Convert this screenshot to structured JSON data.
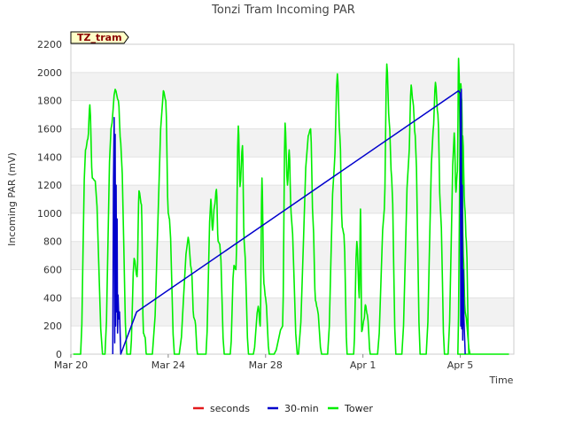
{
  "chart_data": {
    "type": "line",
    "title": "Tonzi Tram Incoming PAR",
    "xlabel": "Time",
    "ylabel": "Incoming PAR (mV)",
    "badge": "TZ_tram",
    "x_origin": "2024-03-20",
    "xlim": [
      0,
      18.2
    ],
    "ylim": [
      0,
      2200
    ],
    "yticks": [
      0,
      200,
      400,
      600,
      800,
      1000,
      1200,
      1400,
      1600,
      1800,
      2000,
      2200
    ],
    "xticks": [
      {
        "value": 0,
        "label": "Mar 20"
      },
      {
        "value": 4,
        "label": "Mar 24"
      },
      {
        "value": 8,
        "label": "Mar 28"
      },
      {
        "value": 12,
        "label": "Apr 1"
      },
      {
        "value": 16,
        "label": "Apr 5"
      }
    ],
    "grid": true,
    "legend_position": "bottom",
    "series": [
      {
        "name": "seconds",
        "color": "#e31a1c",
        "points": []
      },
      {
        "name": "30-min",
        "color": "#0000cc",
        "points": [
          [
            1.72,
            0
          ],
          [
            1.75,
            1250
          ],
          [
            1.78,
            1680
          ],
          [
            1.8,
            80
          ],
          [
            1.82,
            1560
          ],
          [
            1.84,
            200
          ],
          [
            1.86,
            1200
          ],
          [
            1.88,
            300
          ],
          [
            1.9,
            960
          ],
          [
            1.92,
            150
          ],
          [
            1.94,
            420
          ],
          [
            1.97,
            250
          ],
          [
            2.0,
            300
          ],
          [
            2.05,
            0
          ],
          [
            2.7,
            300
          ],
          [
            15.93,
            1870
          ],
          [
            16.0,
            1850
          ],
          [
            16.02,
            200
          ],
          [
            16.04,
            1880
          ],
          [
            16.06,
            180
          ],
          [
            16.08,
            1200
          ],
          [
            16.1,
            100
          ],
          [
            16.12,
            600
          ],
          [
            16.15,
            250
          ],
          [
            16.2,
            0
          ]
        ]
      },
      {
        "name": "Tower",
        "color": "#00ee00",
        "days": [
          {
            "s": 0.4,
            "p": 0.78,
            "e": 1.3,
            "peak": 1770,
            "sub": [
              [
                0.6,
                1450
              ],
              [
                0.7,
                1530
              ],
              [
                0.88,
                1250
              ],
              [
                1.0,
                1230
              ]
            ]
          },
          {
            "s": 1.4,
            "p": 1.82,
            "e": 2.3,
            "peak": 1880,
            "sub": [
              [
                1.65,
                1600
              ],
              [
                1.95,
                1800
              ],
              [
                2.05,
                1500
              ]
            ]
          },
          {
            "s": 2.45,
            "p": 2.8,
            "e": 3.1,
            "peak": 1160,
            "sub": [
              [
                2.6,
                680
              ],
              [
                2.72,
                550
              ],
              [
                2.9,
                1060
              ],
              [
                2.98,
                150
              ],
              [
                3.05,
                120
              ]
            ]
          },
          {
            "s": 3.35,
            "p": 3.8,
            "e": 4.25,
            "peak": 1870,
            "sub": [
              [
                3.9,
                1800
              ],
              [
                4.0,
                1000
              ],
              [
                4.05,
                960
              ]
            ]
          },
          {
            "s": 4.45,
            "p": 4.82,
            "e": 5.2,
            "peak": 830,
            "sub": [
              [
                4.95,
                600
              ],
              [
                5.05,
                260
              ],
              [
                5.1,
                240
              ]
            ]
          },
          {
            "s": 5.55,
            "p": 5.98,
            "e": 6.3,
            "peak": 1170,
            "sub": [
              [
                5.75,
                1100
              ],
              [
                5.82,
                880
              ],
              [
                5.9,
                1050
              ],
              [
                6.05,
                800
              ],
              [
                6.12,
                780
              ]
            ]
          },
          {
            "s": 6.55,
            "p": 6.88,
            "e": 7.3,
            "peak": 1620,
            "sub": [
              [
                6.7,
                630
              ],
              [
                6.78,
                600
              ],
              [
                6.95,
                1190
              ],
              [
                7.05,
                1480
              ],
              [
                7.12,
                800
              ]
            ]
          },
          {
            "s": 7.5,
            "p": 7.85,
            "e": 8.15,
            "peak": 1250,
            "sub": [
              [
                7.7,
                340
              ],
              [
                7.78,
                200
              ],
              [
                7.93,
                500
              ],
              [
                8.0,
                400
              ]
            ]
          },
          {
            "s": 8.35,
            "p": 8.8,
            "e": 9.3,
            "peak": 1640,
            "sub": [
              [
                8.7,
                200
              ],
              [
                8.9,
                1200
              ],
              [
                8.97,
                1450
              ],
              [
                9.05,
                1000
              ]
            ]
          },
          {
            "s": 9.35,
            "p": 9.85,
            "e": 10.3,
            "peak": 1600,
            "sub": [
              [
                9.75,
                1550
              ],
              [
                9.95,
                940
              ],
              [
                10.05,
                380
              ],
              [
                10.12,
                330
              ]
            ]
          },
          {
            "s": 10.55,
            "p": 10.95,
            "e": 11.35,
            "peak": 1990,
            "sub": [
              [
                10.82,
                1330
              ],
              [
                11.05,
                1550
              ],
              [
                11.15,
                900
              ],
              [
                11.22,
                850
              ]
            ]
          },
          {
            "s": 11.62,
            "p": 11.9,
            "e": 12.3,
            "peak": 1030,
            "sub": [
              [
                11.75,
                800
              ],
              [
                11.85,
                400
              ],
              [
                11.95,
                160
              ],
              [
                12.05,
                250
              ],
              [
                12.1,
                350
              ],
              [
                12.18,
                280
              ]
            ]
          },
          {
            "s": 12.6,
            "p": 12.98,
            "e": 13.35,
            "peak": 2060,
            "sub": [
              [
                12.88,
                1030
              ],
              [
                13.08,
                1650
              ],
              [
                13.18,
                1250
              ]
            ]
          },
          {
            "s": 13.6,
            "p": 13.98,
            "e": 14.35,
            "peak": 1910,
            "sub": [
              [
                13.88,
                1380
              ],
              [
                14.05,
                1800
              ],
              [
                14.15,
                1550
              ]
            ]
          },
          {
            "s": 14.6,
            "p": 14.98,
            "e": 15.35,
            "peak": 1930,
            "sub": [
              [
                14.88,
                1580
              ],
              [
                15.08,
                1700
              ],
              [
                15.18,
                1050
              ]
            ]
          },
          {
            "s": 15.5,
            "p": 15.93,
            "e": 16.35,
            "peak": 2100,
            "sub": [
              [
                15.75,
                1570
              ],
              [
                15.82,
                1150
              ],
              [
                15.88,
                1300
              ],
              [
                16.02,
                1250
              ],
              [
                16.1,
                1550
              ],
              [
                16.18,
                1050
              ],
              [
                16.25,
                800
              ]
            ]
          },
          {
            "s": 15.9,
            "p": 16.02,
            "e": 16.4,
            "peak": 1920,
            "sub": [
              [
                16.06,
                1800
              ],
              [
                16.12,
                700
              ],
              [
                16.2,
                300
              ]
            ]
          }
        ]
      }
    ]
  }
}
